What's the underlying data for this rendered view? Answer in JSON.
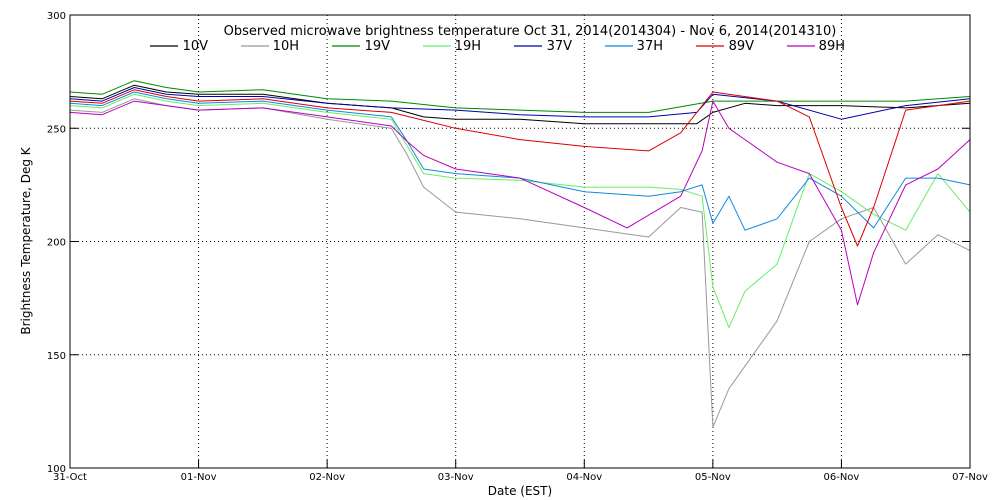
{
  "chart_data": {
    "type": "line",
    "title": "Observed microwave brightness temperature Oct 31, 2014(2014304) - Nov  6, 2014(2014310)",
    "xlabel": "Date (EST)",
    "ylabel": "Brightness Temperature, Deg K",
    "ylim": [
      100,
      300
    ],
    "xlim": [
      "2014-10-31 00:00",
      "2014-11-07 00:00"
    ],
    "grid": true,
    "legend_position": "top",
    "y_ticks": [
      {
        "value": 100,
        "label": "100"
      },
      {
        "value": 150,
        "label": "150"
      },
      {
        "value": 200,
        "label": "200"
      },
      {
        "value": 250,
        "label": "250"
      },
      {
        "value": 300,
        "label": "300"
      }
    ],
    "x_ticks": [
      {
        "date": "2014-10-31",
        "label": "31-Oct"
      },
      {
        "date": "2014-11-01",
        "label": "01-Nov"
      },
      {
        "date": "2014-11-02",
        "label": "02-Nov"
      },
      {
        "date": "2014-11-03",
        "label": "03-Nov"
      },
      {
        "date": "2014-11-04",
        "label": "04-Nov"
      },
      {
        "date": "2014-11-05",
        "label": "05-Nov"
      },
      {
        "date": "2014-11-06",
        "label": "06-Nov"
      },
      {
        "date": "2014-11-07",
        "label": "07-Nov"
      }
    ],
    "series": [
      {
        "name": "10V",
        "color": "#000000",
        "x": [
          "2014-10-31 00:00",
          "2014-10-31 06:00",
          "2014-10-31 12:00",
          "2014-10-31 18:00",
          "2014-11-01 00:00",
          "2014-11-01 12:00",
          "2014-11-02 00:00",
          "2014-11-02 12:00",
          "2014-11-02 18:00",
          "2014-11-03 00:00",
          "2014-11-03 12:00",
          "2014-11-04 00:00",
          "2014-11-04 12:00",
          "2014-11-04 21:00",
          "2014-11-05 00:00",
          "2014-11-05 06:00",
          "2014-11-05 12:00",
          "2014-11-06 00:00",
          "2014-11-06 12:00",
          "2014-11-07 00:00"
        ],
        "y": [
          264,
          263,
          269,
          266,
          265,
          265,
          261,
          259,
          255,
          254,
          254,
          252,
          252,
          252,
          257,
          261,
          260,
          260,
          259,
          261
        ]
      },
      {
        "name": "10H",
        "color": "#999999",
        "x": [
          "2014-10-31 00:00",
          "2014-10-31 06:00",
          "2014-10-31 12:00",
          "2014-10-31 18:00",
          "2014-11-01 00:00",
          "2014-11-01 12:00",
          "2014-11-02 00:00",
          "2014-11-02 12:00",
          "2014-11-02 15:00",
          "2014-11-02 18:00",
          "2014-11-03 00:00",
          "2014-11-03 12:00",
          "2014-11-04 00:00",
          "2014-11-04 12:00",
          "2014-11-04 18:00",
          "2014-11-04 22:00",
          "2014-11-05 00:00",
          "2014-11-05 03:00",
          "2014-11-05 06:00",
          "2014-11-05 12:00",
          "2014-11-05 18:00",
          "2014-11-06 00:00",
          "2014-11-06 06:00",
          "2014-11-06 12:00",
          "2014-11-06 18:00",
          "2014-11-07 00:00"
        ],
        "y": [
          258,
          257,
          263,
          260,
          258,
          259,
          254,
          250,
          238,
          224,
          213,
          210,
          206,
          202,
          215,
          213,
          118,
          135,
          145,
          165,
          200,
          210,
          215,
          190,
          203,
          196
        ]
      },
      {
        "name": "19V",
        "color": "#008800",
        "x": [
          "2014-10-31 00:00",
          "2014-10-31 06:00",
          "2014-10-31 12:00",
          "2014-10-31 18:00",
          "2014-11-01 00:00",
          "2014-11-01 12:00",
          "2014-11-02 00:00",
          "2014-11-02 12:00",
          "2014-11-03 00:00",
          "2014-11-03 12:00",
          "2014-11-04 00:00",
          "2014-11-04 12:00",
          "2014-11-05 00:00",
          "2014-11-05 12:00",
          "2014-11-06 00:00",
          "2014-11-06 12:00",
          "2014-11-07 00:00"
        ],
        "y": [
          266,
          265,
          271,
          268,
          266,
          267,
          263,
          262,
          259,
          258,
          257,
          257,
          262,
          262,
          262,
          262,
          264
        ]
      },
      {
        "name": "19H",
        "color": "#66ee66",
        "x": [
          "2014-10-31 00:00",
          "2014-10-31 06:00",
          "2014-10-31 12:00",
          "2014-10-31 18:00",
          "2014-11-01 00:00",
          "2014-11-01 12:00",
          "2014-11-02 00:00",
          "2014-11-02 12:00",
          "2014-11-02 15:00",
          "2014-11-02 18:00",
          "2014-11-03 00:00",
          "2014-11-03 12:00",
          "2014-11-04 00:00",
          "2014-11-04 12:00",
          "2014-11-04 18:00",
          "2014-11-04 22:00",
          "2014-11-05 00:00",
          "2014-11-05 03:00",
          "2014-11-05 06:00",
          "2014-11-05 12:00",
          "2014-11-05 18:00",
          "2014-11-06 00:00",
          "2014-11-06 06:00",
          "2014-11-06 12:00",
          "2014-11-06 18:00",
          "2014-11-07 00:00"
        ],
        "y": [
          260,
          259,
          265,
          262,
          260,
          261,
          257,
          254,
          242,
          230,
          228,
          227,
          224,
          224,
          223,
          220,
          180,
          162,
          178,
          190,
          230,
          222,
          212,
          205,
          230,
          213
        ]
      },
      {
        "name": "37V",
        "color": "#0000aa",
        "x": [
          "2014-10-31 00:00",
          "2014-10-31 06:00",
          "2014-10-31 12:00",
          "2014-10-31 18:00",
          "2014-11-01 00:00",
          "2014-11-01 12:00",
          "2014-11-02 00:00",
          "2014-11-02 12:00",
          "2014-11-03 00:00",
          "2014-11-03 12:00",
          "2014-11-04 00:00",
          "2014-11-04 12:00",
          "2014-11-04 21:00",
          "2014-11-05 00:00",
          "2014-11-05 12:00",
          "2014-11-06 00:00",
          "2014-11-06 12:00",
          "2014-11-07 00:00"
        ],
        "y": [
          263,
          262,
          268,
          265,
          264,
          264,
          261,
          259,
          258,
          256,
          255,
          255,
          257,
          265,
          262,
          254,
          260,
          263
        ]
      },
      {
        "name": "37H",
        "color": "#1188dd",
        "x": [
          "2014-10-31 00:00",
          "2014-10-31 06:00",
          "2014-10-31 12:00",
          "2014-10-31 18:00",
          "2014-11-01 00:00",
          "2014-11-01 12:00",
          "2014-11-02 00:00",
          "2014-11-02 12:00",
          "2014-11-02 15:00",
          "2014-11-02 18:00",
          "2014-11-03 00:00",
          "2014-11-03 12:00",
          "2014-11-04 00:00",
          "2014-11-04 12:00",
          "2014-11-04 18:00",
          "2014-11-04 22:00",
          "2014-11-05 00:00",
          "2014-11-05 03:00",
          "2014-11-05 06:00",
          "2014-11-05 12:00",
          "2014-11-05 18:00",
          "2014-11-06 00:00",
          "2014-11-06 06:00",
          "2014-11-06 12:00",
          "2014-11-06 18:00",
          "2014-11-07 00:00"
        ],
        "y": [
          261,
          260,
          266,
          263,
          261,
          262,
          258,
          255,
          244,
          232,
          230,
          228,
          222,
          220,
          222,
          225,
          208,
          220,
          205,
          210,
          228,
          220,
          206,
          228,
          228,
          225
        ]
      },
      {
        "name": "89V",
        "color": "#dd0000",
        "x": [
          "2014-10-31 00:00",
          "2014-10-31 06:00",
          "2014-10-31 12:00",
          "2014-10-31 18:00",
          "2014-11-01 00:00",
          "2014-11-01 12:00",
          "2014-11-02 00:00",
          "2014-11-02 12:00",
          "2014-11-03 00:00",
          "2014-11-03 12:00",
          "2014-11-04 00:00",
          "2014-11-04 12:00",
          "2014-11-04 18:00",
          "2014-11-05 00:00",
          "2014-11-05 12:00",
          "2014-11-05 18:00",
          "2014-11-06 00:00",
          "2014-11-06 03:00",
          "2014-11-06 06:00",
          "2014-11-06 12:00",
          "2014-11-07 00:00"
        ],
        "y": [
          262,
          261,
          267,
          264,
          262,
          263,
          259,
          257,
          250,
          245,
          242,
          240,
          248,
          266,
          262,
          255,
          215,
          198,
          215,
          258,
          262
        ]
      },
      {
        "name": "89H",
        "color": "#bb00bb",
        "x": [
          "2014-10-31 00:00",
          "2014-10-31 06:00",
          "2014-10-31 12:00",
          "2014-10-31 18:00",
          "2014-11-01 00:00",
          "2014-11-01 12:00",
          "2014-11-02 00:00",
          "2014-11-02 12:00",
          "2014-11-02 15:00",
          "2014-11-02 18:00",
          "2014-11-03 00:00",
          "2014-11-03 12:00",
          "2014-11-04 00:00",
          "2014-11-04 08:00",
          "2014-11-04 18:00",
          "2014-11-04 22:00",
          "2014-11-05 00:00",
          "2014-11-05 03:00",
          "2014-11-05 06:00",
          "2014-11-05 12:00",
          "2014-11-05 18:00",
          "2014-11-06 00:00",
          "2014-11-06 03:00",
          "2014-11-06 06:00",
          "2014-11-06 12:00",
          "2014-11-06 18:00",
          "2014-11-07 00:00"
        ],
        "y": [
          257,
          256,
          262,
          260,
          258,
          259,
          255,
          251,
          244,
          238,
          232,
          228,
          215,
          206,
          220,
          240,
          262,
          250,
          245,
          235,
          230,
          205,
          172,
          195,
          225,
          232,
          245
        ]
      }
    ]
  }
}
